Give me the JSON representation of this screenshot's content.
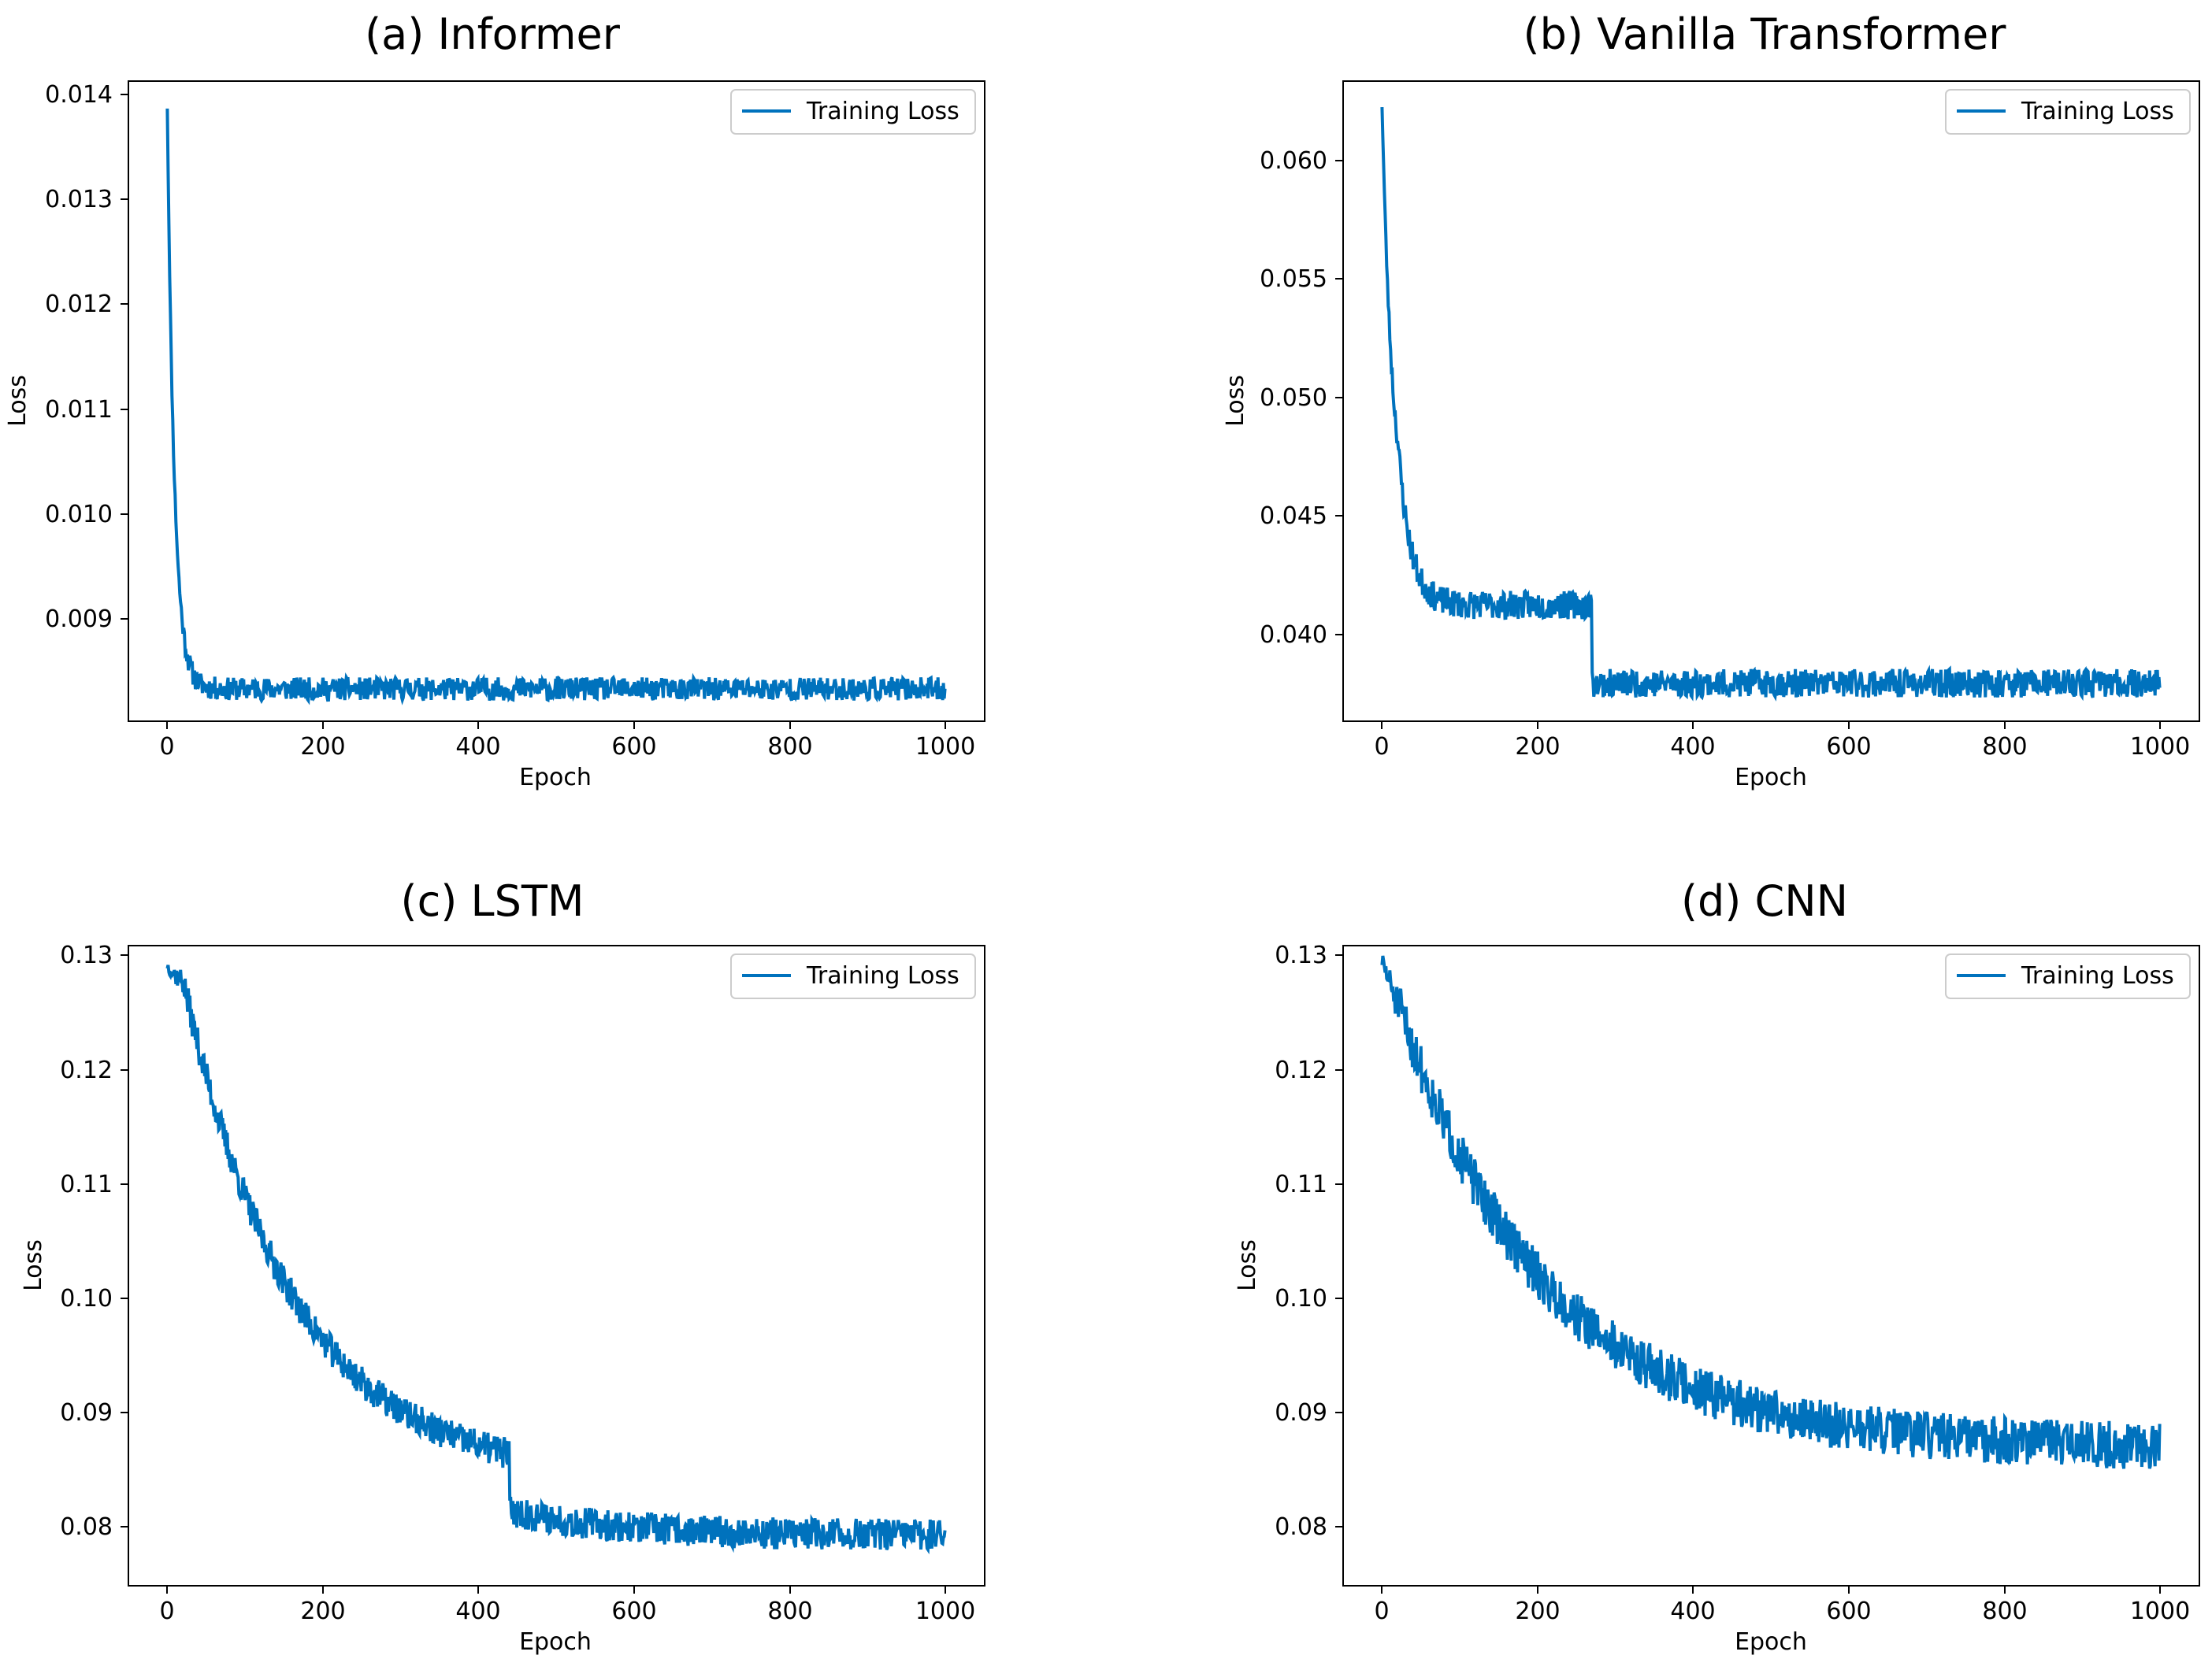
{
  "chart_data": [
    {
      "id": "a",
      "type": "line",
      "title": "(a) Informer",
      "xlabel": "Epoch",
      "ylabel": "Loss",
      "xlim": [
        -50,
        1050
      ],
      "ylim": [
        0.0081,
        0.01415
      ],
      "xticks": [
        0,
        200,
        400,
        600,
        800,
        1000
      ],
      "xtick_labels": [
        "0",
        "200",
        "400",
        "600",
        "800",
        "1000"
      ],
      "yticks": [
        0.009,
        0.01,
        0.011,
        0.012,
        0.013,
        0.014
      ],
      "ytick_labels": [
        "0.009",
        "0.010",
        "0.011",
        "0.012",
        "0.013",
        "0.014"
      ],
      "legend": {
        "label": "Training Loss",
        "loc": "upper right"
      },
      "color": "#0072bd",
      "series": [
        {
          "name": "Training Loss",
          "n": 1000,
          "start": 0.01389,
          "floor": 0.00835,
          "decay": 9,
          "noise": 0.00022,
          "jump_epoch": null,
          "jump_size": 0,
          "seed": 11
        }
      ]
    },
    {
      "id": "b",
      "type": "line",
      "title": "(b) Vanilla Transformer",
      "xlabel": "Epoch",
      "ylabel": "Loss",
      "xlim": [
        -50,
        1050
      ],
      "ylim": [
        0.0365,
        0.0635
      ],
      "xticks": [
        0,
        200,
        400,
        600,
        800,
        1000
      ],
      "xtick_labels": [
        "0",
        "200",
        "400",
        "600",
        "800",
        "1000"
      ],
      "yticks": [
        0.04,
        0.045,
        0.05,
        0.055,
        0.06
      ],
      "ytick_labels": [
        "0.040",
        "0.045",
        "0.050",
        "0.055",
        "0.060"
      ],
      "legend": {
        "label": "Training Loss",
        "loc": "upper right"
      },
      "color": "#0072bd",
      "series": [
        {
          "name": "Training Loss",
          "n": 1000,
          "start": 0.0624,
          "floor": 0.0378,
          "decay": 16,
          "noise": 0.0012,
          "jump_epoch": 270,
          "jump_size": 0.0033,
          "seed": 23
        }
      ]
    },
    {
      "id": "c",
      "type": "line",
      "title": "(c) LSTM",
      "xlabel": "Epoch",
      "ylabel": "Loss",
      "xlim": [
        -50,
        1050
      ],
      "ylim": [
        0.0755,
        0.1315
      ],
      "xticks": [
        0,
        200,
        400,
        600,
        800,
        1000
      ],
      "xtick_labels": [
        "0",
        "200",
        "400",
        "600",
        "800",
        "1000"
      ],
      "yticks": [
        0.08,
        0.09,
        0.1,
        0.11,
        0.12,
        0.13
      ],
      "ytick_labels": [
        "0.08",
        "0.09",
        "0.10",
        "0.11",
        "0.12",
        "0.13"
      ],
      "legend": {
        "label": "Training Loss",
        "loc": "upper right"
      },
      "color": "#0072bd",
      "series": [
        {
          "name": "Training Loss",
          "n": 1000,
          "start": 0.1295,
          "floor": 0.0792,
          "decay": 140,
          "noise": 0.0028,
          "jump_epoch": 440,
          "jump_size": 0.005,
          "seed": 37
        }
      ]
    },
    {
      "id": "d",
      "type": "line",
      "title": "(d) CNN",
      "xlabel": "Epoch",
      "ylabel": "Loss",
      "xlim": [
        -50,
        1050
      ],
      "ylim": [
        0.0755,
        0.1315
      ],
      "xticks": [
        0,
        200,
        400,
        600,
        800,
        1000
      ],
      "xtick_labels": [
        "0",
        "200",
        "400",
        "600",
        "800",
        "1000"
      ],
      "yticks": [
        0.08,
        0.09,
        0.1,
        0.11,
        0.12,
        0.13
      ],
      "ytick_labels": [
        "0.08",
        "0.09",
        "0.10",
        "0.11",
        "0.12",
        "0.13"
      ],
      "legend": {
        "label": "Training Loss",
        "loc": "upper right"
      },
      "color": "#0072bd",
      "series": [
        {
          "name": "Training Loss",
          "n": 1000,
          "start": 0.1298,
          "floor": 0.0865,
          "decay": 190,
          "noise": 0.0042,
          "jump_epoch": null,
          "jump_size": 0,
          "seed": 51
        }
      ]
    }
  ]
}
